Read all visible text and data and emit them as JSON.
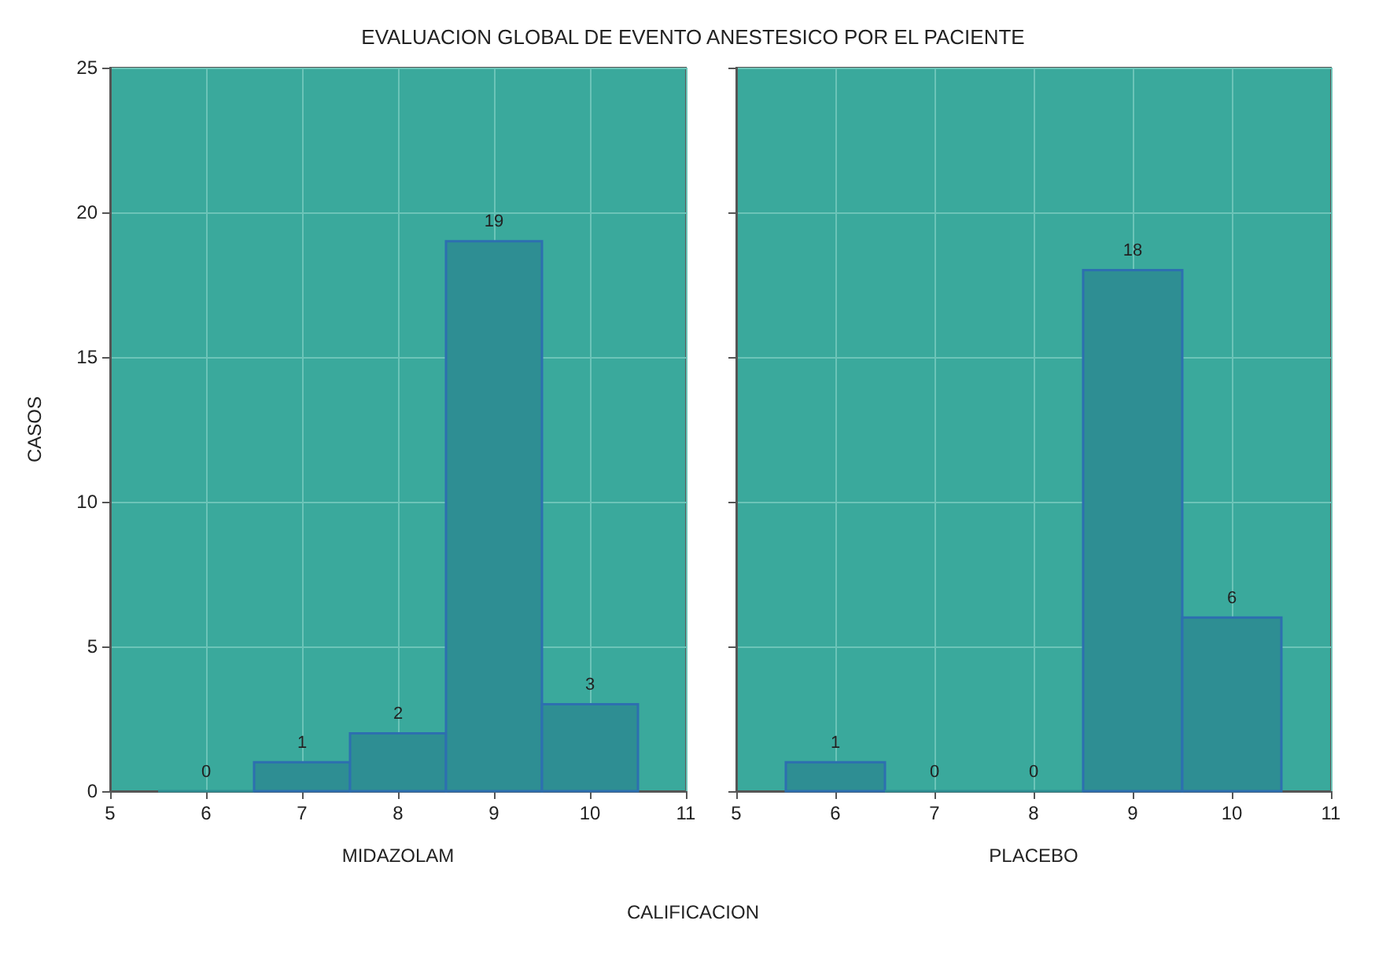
{
  "chart_data": [
    {
      "type": "histogram",
      "title": "EVALUACION GLOBAL DE EVENTO ANESTESICO POR EL PACIENTE",
      "xlabel": "MIDAZOLAM",
      "ylabel": "CASOS",
      "annotations": [
        "CALIFICACION"
      ],
      "bins": [
        5.5,
        6.5,
        7.5,
        8.5,
        9.5,
        10.5
      ],
      "values": [
        0,
        1,
        2,
        19,
        3
      ],
      "color": "#2e8e93",
      "xlim": [
        5,
        11
      ],
      "xticks": [
        5,
        6,
        7,
        8,
        9,
        10,
        11
      ],
      "ylim": [
        0,
        25
      ],
      "yticks": [
        0,
        5,
        10,
        15,
        20,
        25
      ],
      "grid": true,
      "data_labels": true
    },
    {
      "type": "histogram",
      "xlabel": "PLACEBO",
      "bins": [
        5.5,
        6.5,
        7.5,
        8.5,
        9.5,
        10.5
      ],
      "values": [
        1,
        0,
        0,
        18,
        6
      ],
      "color": "#2e8e93",
      "xlim": [
        5,
        11
      ],
      "xticks": [
        5,
        6,
        7,
        8,
        9,
        10,
        11
      ],
      "ylim": [
        0,
        25
      ],
      "yticks": [
        0,
        5,
        10,
        15,
        20,
        25
      ],
      "grid": true,
      "data_labels": true,
      "tick_labels": "x"
    }
  ]
}
